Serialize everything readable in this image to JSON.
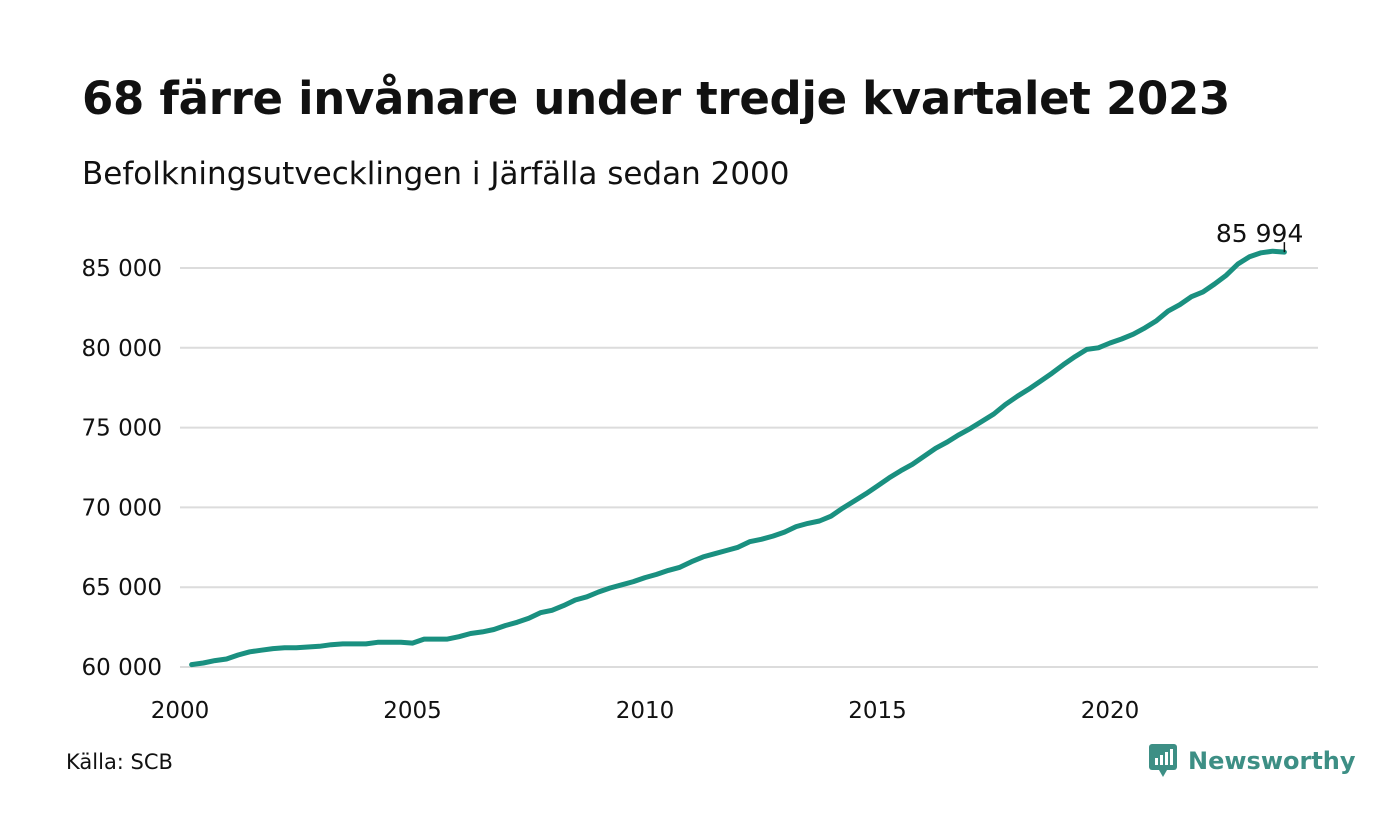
{
  "title": "68 färre invånare under tredje kvartalet 2023",
  "subtitle": "Befolkningsutvecklingen i Järfälla sedan 2000",
  "source": "Källa: SCB",
  "brand": "Newsworthy",
  "colors": {
    "line": "#1a9080",
    "grid": "#dcdcdc",
    "brand": "#3d8f85"
  },
  "chart_data": {
    "type": "line",
    "title": "68 färre invånare under tredje kvartalet 2023",
    "subtitle": "Befolkningsutvecklingen i Järfälla sedan 2000",
    "xlabel": "",
    "ylabel": "",
    "xlim": [
      2000,
      2024
    ],
    "ylim": [
      59500,
      86500
    ],
    "x_ticks": [
      2000,
      2005,
      2010,
      2015,
      2020
    ],
    "x_tick_labels": [
      "2000",
      "2005",
      "2010",
      "2015",
      "2020"
    ],
    "y_ticks": [
      60000,
      65000,
      70000,
      75000,
      80000,
      85000
    ],
    "y_tick_labels": [
      "60 000",
      "65 000",
      "70 000",
      "75 000",
      "80 000",
      "85 000"
    ],
    "grid": true,
    "end_label": "85 994",
    "series": [
      {
        "x": [
          2000.25,
          2000.5,
          2000.75,
          2001.0,
          2001.25,
          2001.5,
          2001.75,
          2002.0,
          2002.25,
          2002.5,
          2002.75,
          2003.0,
          2003.25,
          2003.5,
          2003.75,
          2004.0,
          2004.25,
          2004.5,
          2004.75,
          2005.0,
          2005.25,
          2005.5,
          2005.75,
          2006.0,
          2006.25,
          2006.5,
          2006.75,
          2007.0,
          2007.25,
          2007.5,
          2007.75,
          2008.0,
          2008.25,
          2008.5,
          2008.75,
          2009.0,
          2009.25,
          2009.5,
          2009.75,
          2010.0,
          2010.25,
          2010.5,
          2010.75,
          2011.0,
          2011.25,
          2011.5,
          2011.75,
          2012.0,
          2012.25,
          2012.5,
          2012.75,
          2013.0,
          2013.25,
          2013.5,
          2013.75,
          2014.0,
          2014.25,
          2014.5,
          2014.75,
          2015.0,
          2015.25,
          2015.5,
          2015.75,
          2016.0,
          2016.25,
          2016.5,
          2016.75,
          2017.0,
          2017.25,
          2017.5,
          2017.75,
          2018.0,
          2018.25,
          2018.5,
          2018.75,
          2019.0,
          2019.25,
          2019.5,
          2019.75,
          2020.0,
          2020.25,
          2020.5,
          2020.75,
          2021.0,
          2021.25,
          2021.5,
          2021.75,
          2022.0,
          2022.25,
          2022.5,
          2022.75,
          2023.0,
          2023.25,
          2023.5,
          2023.75
        ],
        "values": [
          60150,
          60250,
          60400,
          60500,
          60750,
          60950,
          61050,
          61150,
          61200,
          61200,
          61250,
          61300,
          61400,
          61450,
          61450,
          61450,
          61550,
          61550,
          61550,
          61500,
          61750,
          61750,
          61750,
          61900,
          62100,
          62200,
          62350,
          62600,
          62800,
          63050,
          63400,
          63550,
          63850,
          64200,
          64400,
          64700,
          64950,
          65150,
          65350,
          65600,
          65800,
          66050,
          66250,
          66600,
          66900,
          67100,
          67300,
          67500,
          67850,
          68000,
          68200,
          68450,
          68800,
          69000,
          69150,
          69450,
          69950,
          70400,
          70850,
          71350,
          71850,
          72300,
          72700,
          73200,
          73700,
          74100,
          74550,
          74950,
          75400,
          75850,
          76450,
          76950,
          77400,
          77900,
          78400,
          78950,
          79450,
          79900,
          80000,
          80300,
          80550,
          80850,
          81250,
          81700,
          82300,
          82700,
          83200,
          83500,
          84000,
          84550,
          85250,
          85700,
          85950,
          86050,
          85994
        ]
      }
    ]
  }
}
